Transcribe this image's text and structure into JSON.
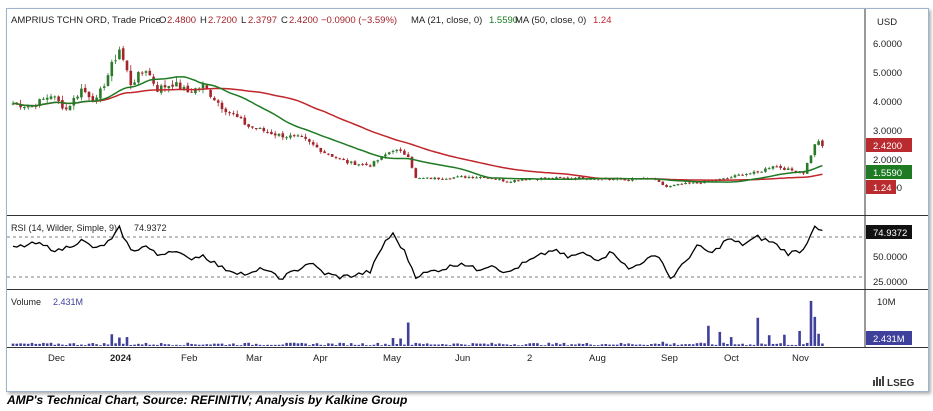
{
  "header": {
    "symbol": "AMPRIUS TCHN ORD, Trade Price",
    "open_label": "O",
    "open": "2.4800",
    "high_label": "H",
    "high": "2.7200",
    "low_label": "L",
    "low": "2.3797",
    "close_label": "C",
    "close": "2.4200",
    "change": "−0.0900 (−3.59%)",
    "ma21_label": "MA (21, close, 0)",
    "ma21_value": "1.5590",
    "ma50_label": "MA (50, close, 0)",
    "ma50_value": "1.24"
  },
  "currency": "USD",
  "price_axis": {
    "ticks": [
      "6.0000",
      "5.0000",
      "4.0000",
      "3.0000",
      "2.0000",
      "1.0000"
    ],
    "last_price_badge": "2.4200",
    "ma21_badge": "1.5590",
    "ma50_badge": "1.24"
  },
  "rsi": {
    "label": "RSI (14, Wilder, Simple, 9)",
    "value": "74.9372",
    "ticks": [
      "50.0000",
      "25.0000"
    ],
    "badge": "74.9372"
  },
  "volume": {
    "label": "Volume",
    "value": "2.431M",
    "tick": "10M",
    "badge": "2.431M"
  },
  "x_axis": [
    "Dec",
    "2024",
    "Feb",
    "Mar",
    "Apr",
    "May",
    "Jun",
    "2",
    "Aug",
    "Sep",
    "Oct",
    "Nov"
  ],
  "brand": "LSEG",
  "caption": "AMP's Technical Chart, Source: REFINITIV; Analysis by Kalkine Group",
  "colors": {
    "ma21": "#1e7b23",
    "ma50": "#c0262c",
    "up_candle": "#2a7a2a",
    "down_candle": "#a3242a",
    "volume_bar": "#3f3f9c",
    "rsi_line": "#000000"
  },
  "chart_data": {
    "type": "candlestick",
    "title": "AMPRIUS TCHN ORD, Trade Price",
    "ylabel": "USD",
    "ylim": [
      0.5,
      6.5
    ],
    "x_ticks": [
      "Dec",
      "2024",
      "Feb",
      "Mar",
      "Apr",
      "May",
      "Jun",
      "2",
      "Aug",
      "Sep",
      "Oct",
      "Nov"
    ],
    "close_anchors": [
      [
        0,
        3.9
      ],
      [
        5,
        3.8
      ],
      [
        10,
        4.2
      ],
      [
        14,
        3.7
      ],
      [
        18,
        4.4
      ],
      [
        22,
        4.0
      ],
      [
        26,
        5.2
      ],
      [
        28,
        5.8
      ],
      [
        31,
        4.6
      ],
      [
        35,
        5.1
      ],
      [
        38,
        4.4
      ],
      [
        42,
        4.6
      ],
      [
        46,
        4.3
      ],
      [
        50,
        4.5
      ],
      [
        55,
        3.8
      ],
      [
        62,
        3.1
      ],
      [
        70,
        2.8
      ],
      [
        76,
        2.7
      ],
      [
        82,
        2.2
      ],
      [
        88,
        1.85
      ],
      [
        94,
        1.75
      ],
      [
        100,
        2.3
      ],
      [
        104,
        2.1
      ],
      [
        106,
        1.3
      ],
      [
        112,
        1.3
      ],
      [
        118,
        1.35
      ],
      [
        124,
        1.35
      ],
      [
        130,
        1.2
      ],
      [
        136,
        1.3
      ],
      [
        142,
        1.3
      ],
      [
        150,
        1.32
      ],
      [
        156,
        1.28
      ],
      [
        162,
        1.25
      ],
      [
        168,
        1.3
      ],
      [
        172,
        1.0
      ],
      [
        176,
        1.1
      ],
      [
        180,
        1.15
      ],
      [
        184,
        1.22
      ],
      [
        188,
        1.3
      ],
      [
        192,
        1.45
      ],
      [
        196,
        1.5
      ],
      [
        200,
        1.75
      ],
      [
        204,
        1.6
      ],
      [
        208,
        1.5
      ],
      [
        211,
        2.45
      ],
      [
        212,
        2.62
      ],
      [
        213,
        2.42
      ]
    ],
    "series": [
      {
        "name": "MA (21, close, 0)",
        "last": 1.559
      },
      {
        "name": "MA (50, close, 0)",
        "last": 1.24
      },
      {
        "name": "RSI (14, Wilder, Simple, 9)",
        "last": 74.9372,
        "ylim": [
          15,
          90
        ]
      },
      {
        "name": "Volume",
        "last_millions": 2.431
      }
    ],
    "rsi_anchors": [
      [
        0,
        58
      ],
      [
        6,
        63
      ],
      [
        12,
        55
      ],
      [
        18,
        66
      ],
      [
        22,
        57
      ],
      [
        26,
        67
      ],
      [
        28,
        80
      ],
      [
        31,
        55
      ],
      [
        35,
        60
      ],
      [
        38,
        50
      ],
      [
        42,
        56
      ],
      [
        46,
        46
      ],
      [
        50,
        50
      ],
      [
        55,
        36
      ],
      [
        62,
        28
      ],
      [
        66,
        36
      ],
      [
        70,
        24
      ],
      [
        74,
        32
      ],
      [
        78,
        42
      ],
      [
        82,
        30
      ],
      [
        86,
        26
      ],
      [
        90,
        28
      ],
      [
        94,
        32
      ],
      [
        98,
        66
      ],
      [
        100,
        73
      ],
      [
        103,
        54
      ],
      [
        106,
        27
      ],
      [
        110,
        32
      ],
      [
        114,
        36
      ],
      [
        118,
        42
      ],
      [
        122,
        34
      ],
      [
        126,
        40
      ],
      [
        130,
        30
      ],
      [
        134,
        40
      ],
      [
        138,
        48
      ],
      [
        142,
        56
      ],
      [
        146,
        48
      ],
      [
        150,
        52
      ],
      [
        154,
        46
      ],
      [
        158,
        54
      ],
      [
        162,
        34
      ],
      [
        166,
        44
      ],
      [
        170,
        50
      ],
      [
        173,
        24
      ],
      [
        176,
        38
      ],
      [
        180,
        60
      ],
      [
        184,
        52
      ],
      [
        188,
        68
      ],
      [
        192,
        62
      ],
      [
        196,
        70
      ],
      [
        200,
        64
      ],
      [
        204,
        52
      ],
      [
        208,
        56
      ],
      [
        211,
        84
      ],
      [
        213,
        75
      ]
    ],
    "volume_spikes_millions": [
      [
        26,
        2.5
      ],
      [
        28,
        1.8
      ],
      [
        30,
        1.9
      ],
      [
        100,
        1.7
      ],
      [
        102,
        1.6
      ],
      [
        104,
        5.0
      ],
      [
        171,
        0.9
      ],
      [
        183,
        4.3
      ],
      [
        186,
        3.0
      ],
      [
        189,
        1.9
      ],
      [
        196,
        6.0
      ],
      [
        199,
        2.3
      ],
      [
        203,
        2.4
      ],
      [
        207,
        3.2
      ],
      [
        210,
        9.6
      ],
      [
        211,
        6.2
      ],
      [
        212,
        2.6
      ]
    ]
  }
}
